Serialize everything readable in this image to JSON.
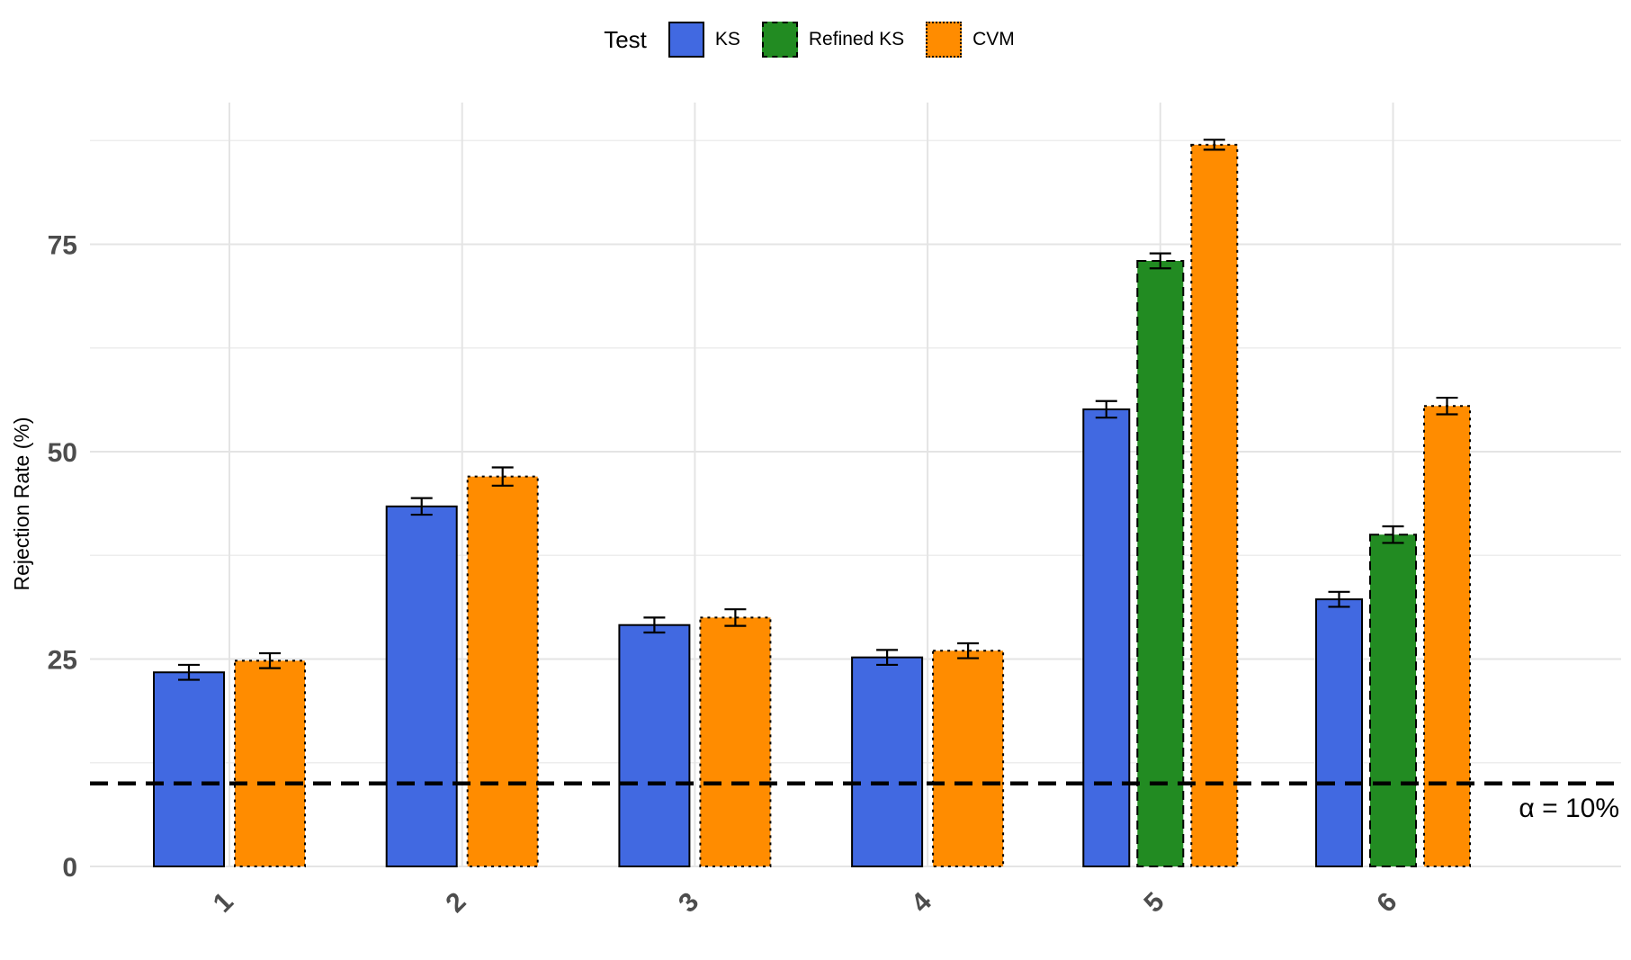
{
  "chart_data": {
    "type": "bar",
    "categories": [
      "1",
      "2",
      "3",
      "4",
      "5",
      "6"
    ],
    "xlabel": "",
    "ylabel": "Rejection Rate (%)",
    "ylim": [
      0,
      90
    ],
    "yticks": [
      0,
      25,
      50,
      75
    ],
    "grid": true,
    "legend": {
      "title": "Test",
      "placement": "top"
    },
    "series": [
      {
        "name": "KS",
        "color": "#4169E1",
        "linestyle": "solid",
        "values": [
          23.4,
          43.4,
          29.1,
          25.2,
          55.1,
          32.2
        ],
        "err": [
          0.9,
          1.0,
          0.9,
          0.9,
          1.0,
          0.9
        ]
      },
      {
        "name": "Refined KS",
        "color": "#228B22",
        "linestyle": "dashed",
        "values": [
          null,
          null,
          null,
          null,
          73.0,
          40.0
        ],
        "err": [
          null,
          null,
          null,
          null,
          0.9,
          1.0
        ]
      },
      {
        "name": "CVM",
        "color": "#FF8C00",
        "linestyle": "dotted",
        "values": [
          24.8,
          47.0,
          30.0,
          26.0,
          87.0,
          55.5
        ],
        "err": [
          0.9,
          1.1,
          1.0,
          0.9,
          0.6,
          1.0
        ]
      }
    ],
    "reference_line": {
      "value": 10,
      "label": "α = 10%"
    }
  }
}
